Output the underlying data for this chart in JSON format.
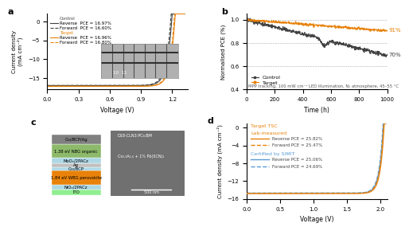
{
  "panel_a": {
    "label": "a",
    "xlabel": "Voltage (V)",
    "ylabel": "Current density\n(mA cm⁻²)",
    "xlim": [
      0,
      1.35
    ],
    "ylim": [
      -18,
      2
    ],
    "xticks": [
      0,
      0.3,
      0.6,
      0.9,
      1.2
    ],
    "yticks": [
      0,
      -5,
      -10,
      -15
    ],
    "color_control": "#404040",
    "color_target": "#E8820A",
    "legend_lines": [
      {
        "label": "Control",
        "header": true,
        "color": "#404040"
      },
      {
        "label": "  Reverse  PCE = 16.97%",
        "color": "#404040",
        "ls": "-"
      },
      {
        "label": "  Forward  PCE = 16.60%",
        "color": "#404040",
        "ls": "--"
      },
      {
        "label": "Target",
        "header": true,
        "color": "#E8820A"
      },
      {
        "label": "  Reverse  PCE = 16.96%",
        "color": "#E8820A",
        "ls": "-"
      },
      {
        "label": "  Forward  PCE = 16.80%",
        "color": "#E8820A",
        "ls": "--"
      }
    ],
    "jsc_control": -17.0,
    "voc_control": 1.22,
    "jsc_target": -17.2,
    "voc_target": 1.25
  },
  "panel_b": {
    "label": "b",
    "xlabel": "Time (h)",
    "ylabel": "Normalised PCE (%)",
    "xlim": [
      0,
      1000
    ],
    "ylim": [
      0.4,
      1.05
    ],
    "xticks": [
      0,
      200,
      400,
      600,
      800,
      1000
    ],
    "yticks": [
      0.4,
      0.6,
      0.8,
      1.0
    ],
    "color_control": "#404040",
    "color_target": "#E8820A",
    "label_91": "91%",
    "label_70": "70%",
    "caption": "MPP tracking, 100 mW cm⁻² LED illumination, N₂ atmosphere, 45–55 °C"
  },
  "panel_c": {
    "label": "c",
    "layers": [
      {
        "name": "C₆₀/BCP/Ag",
        "color": "#808080",
        "height": 1
      },
      {
        "name": "1.38 eV NBG organic",
        "color": "#8DB96A",
        "height": 1.4
      },
      {
        "name": "MoOₓ/2PACz",
        "color": "#ADD8E6",
        "height": 0.5
      },
      {
        "name": "Ag",
        "color": "#C0C0C0",
        "height": 0.4
      },
      {
        "name": "C₆₀/BCP",
        "color": "#ADD8E6",
        "height": 0.4
      },
      {
        "name": "1.84 eV WBG perovskite",
        "color": "#E8820A",
        "height": 1.4
      },
      {
        "name": "NiOₓ/2PACz",
        "color": "#ADD8E6",
        "height": 0.5
      },
      {
        "name": "ITO",
        "color": "#90EE90",
        "height": 0.6
      }
    ]
  },
  "panel_d": {
    "label": "d",
    "xlabel": "Voltage (V)",
    "ylabel": "Current density (mA cm⁻²)",
    "xlim": [
      0,
      2.1
    ],
    "ylim": [
      -16,
      1
    ],
    "xticks": [
      0,
      0.5,
      1.0,
      1.5,
      2.0
    ],
    "yticks": [
      0,
      -4,
      -8,
      -12,
      -16
    ],
    "color_orange": "#E8820A",
    "color_blue": "#5B9BD5",
    "title_orange": "Target TSC",
    "subtitle_orange": "Lab-measured",
    "leg_or": "Reverse PCE = 25.82%",
    "leg_of": "Forward PCE = 25.47%",
    "title_blue": "Certified by SIMIT",
    "leg_br": "Reverse PCE = 25.06%",
    "leg_bf": "Forward PCE = 24.69%"
  },
  "bg_color": "#ffffff"
}
